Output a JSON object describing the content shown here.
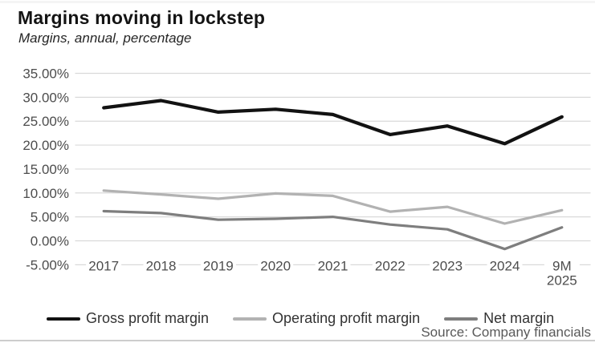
{
  "chart_data": {
    "type": "line",
    "title": "Margins moving in lockstep",
    "subtitle": "Margins, annual, percentage",
    "source": "Source: Company financials",
    "categories": [
      "2017",
      "2018",
      "2019",
      "2020",
      "2021",
      "2022",
      "2023",
      "2024",
      "9M\n2025"
    ],
    "series": [
      {
        "name": "Gross profit margin",
        "color": "#121212",
        "stroke_width": 4.2,
        "values": [
          27.8,
          29.3,
          26.9,
          27.5,
          26.4,
          22.2,
          24.0,
          20.3,
          25.9
        ]
      },
      {
        "name": "Operating profit margin",
        "color": "#b2b2b2",
        "stroke_width": 3.2,
        "values": [
          10.5,
          9.7,
          8.8,
          9.9,
          9.4,
          6.1,
          7.1,
          3.6,
          6.4
        ]
      },
      {
        "name": "Net margin",
        "color": "#7e7e7e",
        "stroke_width": 3.2,
        "values": [
          6.2,
          5.8,
          4.4,
          4.6,
          5.0,
          3.4,
          2.4,
          -1.7,
          2.8
        ]
      }
    ],
    "y_axis": {
      "tick_values": [
        35,
        30,
        25,
        20,
        15,
        10,
        5,
        0,
        -5
      ],
      "tick_labels": [
        "35.00%",
        "30.00%",
        "25.00%",
        "20.00%",
        "15.00%",
        "10.00%",
        "5.00%",
        "0.00%",
        "-5.00%"
      ],
      "ylim": [
        -5,
        35
      ]
    },
    "grid": true,
    "legend_position": "bottom",
    "colors": {
      "gridline": "#d9d9d9",
      "axis_text": "#4d4d4d",
      "legend_text": "#333333",
      "source_text": "#595959"
    }
  }
}
